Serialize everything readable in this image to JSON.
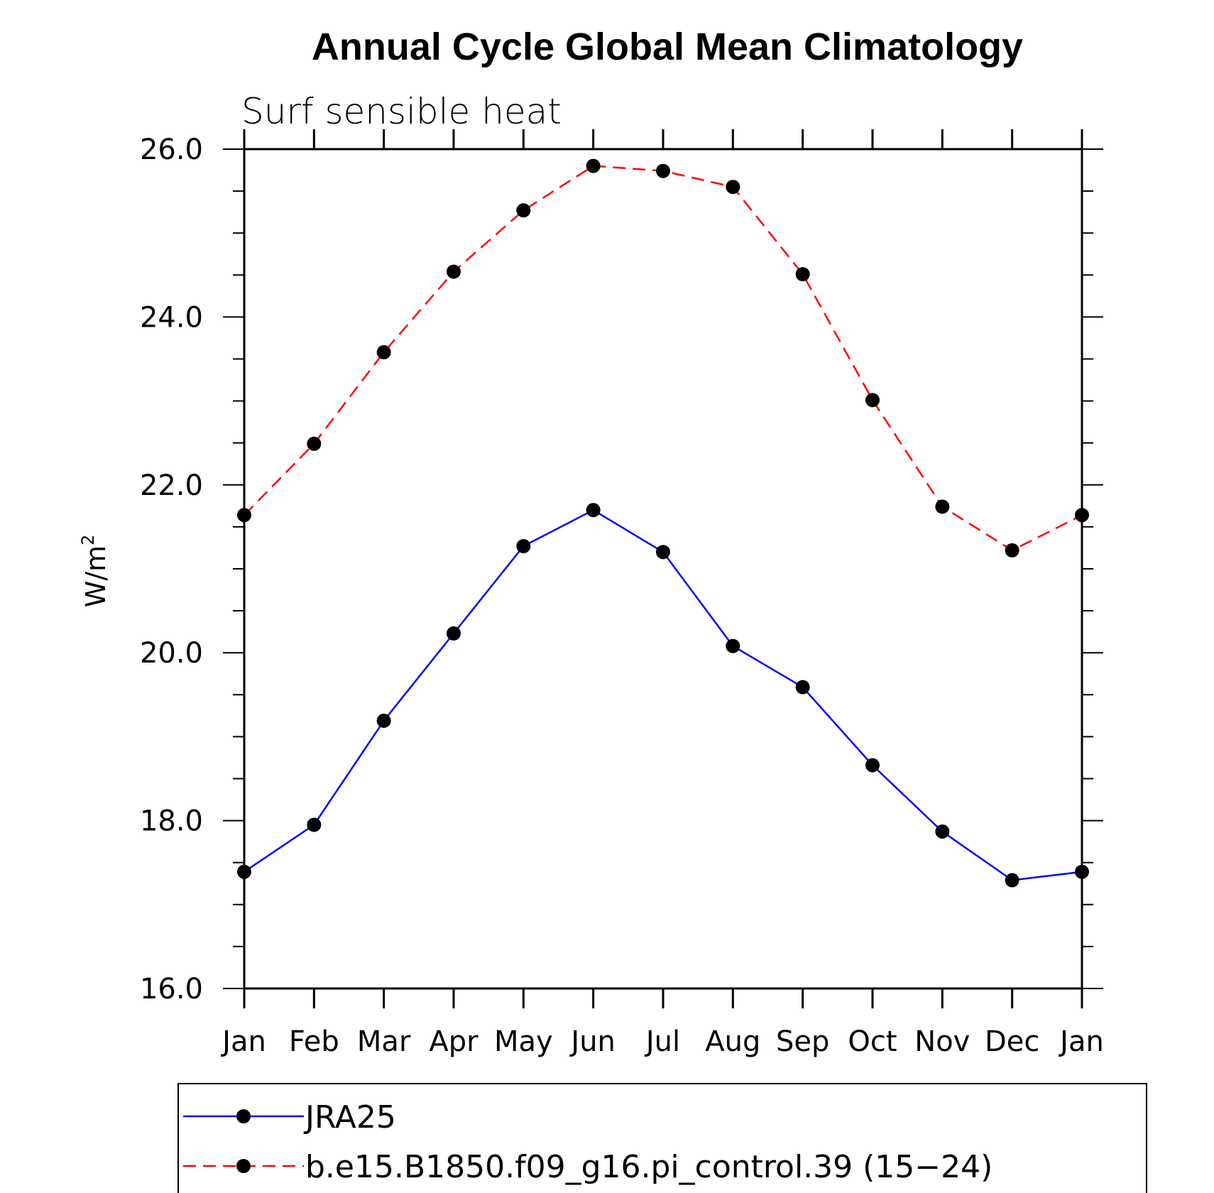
{
  "chart_data": {
    "type": "line",
    "title": "Annual Cycle Global Mean Climatology",
    "subtitle": "Surf  sensible  heat",
    "ylabel": "W/m",
    "ylabel_sup": "2",
    "xlabel": "",
    "categories": [
      "Jan",
      "Feb",
      "Mar",
      "Apr",
      "May",
      "Jun",
      "Jul",
      "Aug",
      "Sep",
      "Oct",
      "Nov",
      "Dec",
      "Jan"
    ],
    "ylim": [
      16.0,
      26.0
    ],
    "yticks": [
      "16.0",
      "18.0",
      "20.0",
      "22.0",
      "24.0",
      "26.0"
    ],
    "grid": false,
    "legend_position": "bottom",
    "series": [
      {
        "name": "JRA25",
        "color": "#0000ff",
        "dashed": false,
        "values": [
          17.39,
          17.95,
          19.19,
          20.23,
          21.27,
          21.7,
          21.2,
          20.08,
          19.59,
          18.66,
          17.87,
          17.29,
          17.39
        ]
      },
      {
        "name": "b.e15.B1850.f09_g16.pi_control.39 (15−24)",
        "color": "#ff0000",
        "dashed": true,
        "values": [
          21.64,
          22.49,
          23.58,
          24.54,
          25.27,
          25.8,
          25.74,
          25.55,
          24.51,
          23.01,
          21.74,
          21.22,
          21.64
        ]
      }
    ],
    "marker_color": "#000000"
  }
}
